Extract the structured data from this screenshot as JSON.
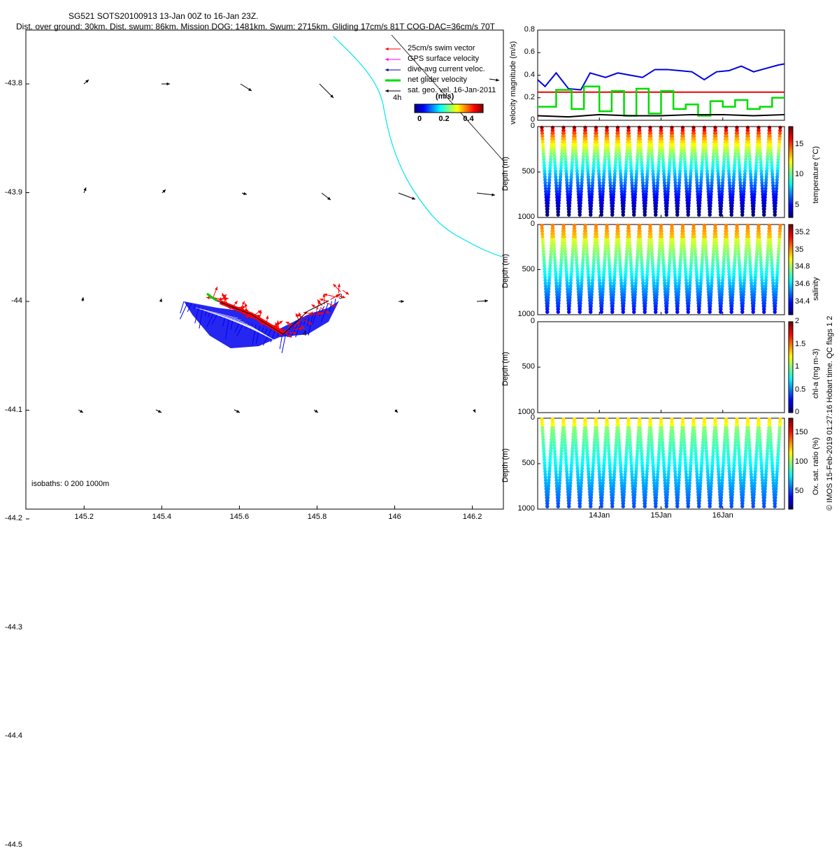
{
  "title": {
    "line1": "SG521 SOTS20100913 13-Jan 00Z to 16-Jan 23Z.",
    "line2": "Dist. over ground: 30km. Dist. swum: 86km. Mission DOG: 1481km. Swum: 2715km. Gliding 17cm/s 81T COG-DAC=36cm/s 70T"
  },
  "map": {
    "x_ticks": [
      "145.2",
      "145.4",
      "145.6",
      "145.8",
      "146",
      "146.2"
    ],
    "y_ticks": [
      "-43.8",
      "-43.9",
      "-44",
      "-44.1",
      "-44.2",
      "-44.3",
      "-44.4",
      "-44.5"
    ],
    "isobaths_label": "isobaths: 0   200   1000m",
    "legend": [
      {
        "label": "25cm/s swim vector",
        "color": "#ff0000"
      },
      {
        "label": "GPS surface velocity",
        "color": "#ff00ff"
      },
      {
        "label": "dive-avg current veloc.",
        "color": "#0000aa"
      },
      {
        "label": "net glider velocity",
        "color": "#00dd00"
      },
      {
        "label": "sat. geo. vel. 16-Jan-2011",
        "color": "#000000"
      }
    ],
    "scale_label": "4h",
    "colorbar_unit": "(m/s)",
    "colorbar_ticks": [
      "0",
      "0.2",
      "0.4"
    ],
    "track_labels": [
      "3",
      "4"
    ],
    "isobath_color": "#00e5ee",
    "current_color": "#0000ee",
    "swim_color": "#ff0000",
    "net_color": "#00cc00"
  },
  "chart_data": [
    {
      "type": "line",
      "title": "velocity magnitude",
      "ylabel": "velocity magnitude (m/s)",
      "ylim": [
        0,
        0.8
      ],
      "y_ticks": [
        "0",
        "0.2",
        "0.4",
        "0.6",
        "0.8"
      ],
      "xlim_days": [
        0,
        4
      ],
      "series": [
        {
          "name": "dive-avg current",
          "color": "#0000dd",
          "x": [
            0,
            0.12,
            0.3,
            0.5,
            0.7,
            0.85,
            1.1,
            1.3,
            1.5,
            1.7,
            1.9,
            2.1,
            2.3,
            2.5,
            2.7,
            2.9,
            3.1,
            3.3,
            3.5,
            3.7,
            3.9,
            4.0
          ],
          "y": [
            0.36,
            0.3,
            0.42,
            0.28,
            0.27,
            0.42,
            0.38,
            0.42,
            0.4,
            0.38,
            0.45,
            0.45,
            0.44,
            0.43,
            0.36,
            0.43,
            0.44,
            0.48,
            0.43,
            0.46,
            0.49,
            0.5
          ]
        },
        {
          "name": "swim threshold",
          "color": "#ee0000",
          "x": [
            0,
            4
          ],
          "y": [
            0.25,
            0.25
          ]
        },
        {
          "name": "net glider velocity",
          "color": "#00dd00",
          "x": [
            0,
            0.3,
            0.3,
            0.55,
            0.55,
            0.75,
            0.75,
            1.0,
            1.0,
            1.2,
            1.2,
            1.4,
            1.4,
            1.6,
            1.6,
            1.8,
            1.8,
            2.0,
            2.0,
            2.2,
            2.2,
            2.4,
            2.4,
            2.6,
            2.6,
            2.8,
            2.8,
            3.0,
            3.0,
            3.2,
            3.2,
            3.4,
            3.4,
            3.6,
            3.6,
            3.8,
            3.8,
            4.0
          ],
          "y": [
            0.12,
            0.12,
            0.27,
            0.27,
            0.1,
            0.1,
            0.3,
            0.3,
            0.08,
            0.08,
            0.26,
            0.26,
            0.04,
            0.04,
            0.28,
            0.28,
            0.06,
            0.06,
            0.26,
            0.26,
            0.1,
            0.1,
            0.14,
            0.14,
            0.04,
            0.04,
            0.17,
            0.17,
            0.12,
            0.12,
            0.18,
            0.18,
            0.1,
            0.1,
            0.12,
            0.12,
            0.2,
            0.2
          ]
        },
        {
          "name": "GPS surface velocity",
          "color": "#000000",
          "x": [
            0,
            0.5,
            1.0,
            1.5,
            2.0,
            2.5,
            3.0,
            3.5,
            4.0
          ],
          "y": [
            0.04,
            0.03,
            0.05,
            0.04,
            0.04,
            0.05,
            0.05,
            0.04,
            0.05
          ]
        }
      ]
    },
    {
      "type": "scatter",
      "ylabel": "Depth (m)",
      "colorbar_label": "temperature (°C)",
      "colorbar_ticks": [
        "5",
        "10",
        "15"
      ],
      "clim": [
        3,
        18
      ],
      "y_ticks": [
        "0",
        "500",
        "1000"
      ],
      "ylim": [
        0,
        1000
      ],
      "profiles": 22
    },
    {
      "type": "scatter",
      "ylabel": "Depth (m)",
      "colorbar_label": "salinity",
      "colorbar_ticks": [
        "34.4",
        "34.6",
        "34.8",
        "35",
        "35.2"
      ],
      "clim": [
        34.25,
        35.3
      ],
      "y_ticks": [
        "0",
        "500",
        "1000"
      ],
      "ylim": [
        0,
        1000
      ],
      "profiles": 22
    },
    {
      "type": "scatter",
      "ylabel": "Depth (m)",
      "colorbar_label": "chl-a (mg m-3)",
      "colorbar_ticks": [
        "0",
        "0.5",
        "1",
        "1.5",
        "2"
      ],
      "clim": [
        0,
        2
      ],
      "y_ticks": [
        "0",
        "500",
        "1000"
      ],
      "ylim": [
        0,
        1000
      ],
      "profiles": 0
    },
    {
      "type": "scatter",
      "ylabel": "Depth (m)",
      "colorbar_label": "Ox. sat. ratio (%)",
      "colorbar_ticks": [
        "50",
        "100",
        "150"
      ],
      "clim": [
        20,
        175
      ],
      "y_ticks": [
        "0",
        "500",
        "1000"
      ],
      "ylim": [
        0,
        1000
      ],
      "profiles": 22
    }
  ],
  "time_ticks": [
    "14Jan",
    "15Jan",
    "16Jan"
  ],
  "footer": "© IMOS 15-Feb-2019 01:27:16 Hobart time. QC flags 1  2"
}
